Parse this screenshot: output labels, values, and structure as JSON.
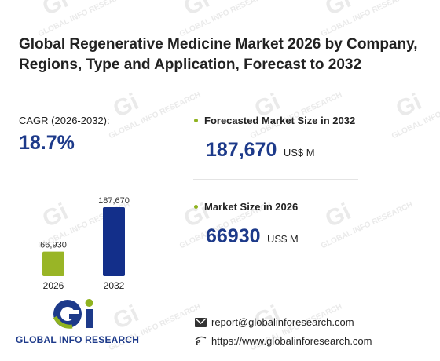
{
  "title": "Global Regenerative Medicine Market 2026 by Company, Regions, Type and Application, Forecast to 2032",
  "cagr": {
    "label": "CAGR (2026-2032):",
    "value": "18.7%"
  },
  "forecast": {
    "label": "Forecasted Market Size in 2032",
    "value": "187,670",
    "unit": "US$ M"
  },
  "current": {
    "label": "Market Size in 2026",
    "value": "66930",
    "unit": "US$ M"
  },
  "chart_data": {
    "type": "bar",
    "categories": [
      "2026",
      "2032"
    ],
    "values": [
      66930,
      187670
    ],
    "value_labels": [
      "66,930",
      "187,670"
    ],
    "colors": [
      "#99b526",
      "#132f8a"
    ]
  },
  "watermark_text": "GLOBAL INFO RESEARCH",
  "logo": {
    "text": "GLOBAL INFO RESEARCH",
    "primary_color": "#1d3a8a",
    "accent_color": "#8fb31f"
  },
  "contact": {
    "email": "report@globalinforesearch.com",
    "website": "https://www.globalinforesearch.com",
    "email_icon": "envelope-icon",
    "web_icon": "browser-e-icon"
  }
}
